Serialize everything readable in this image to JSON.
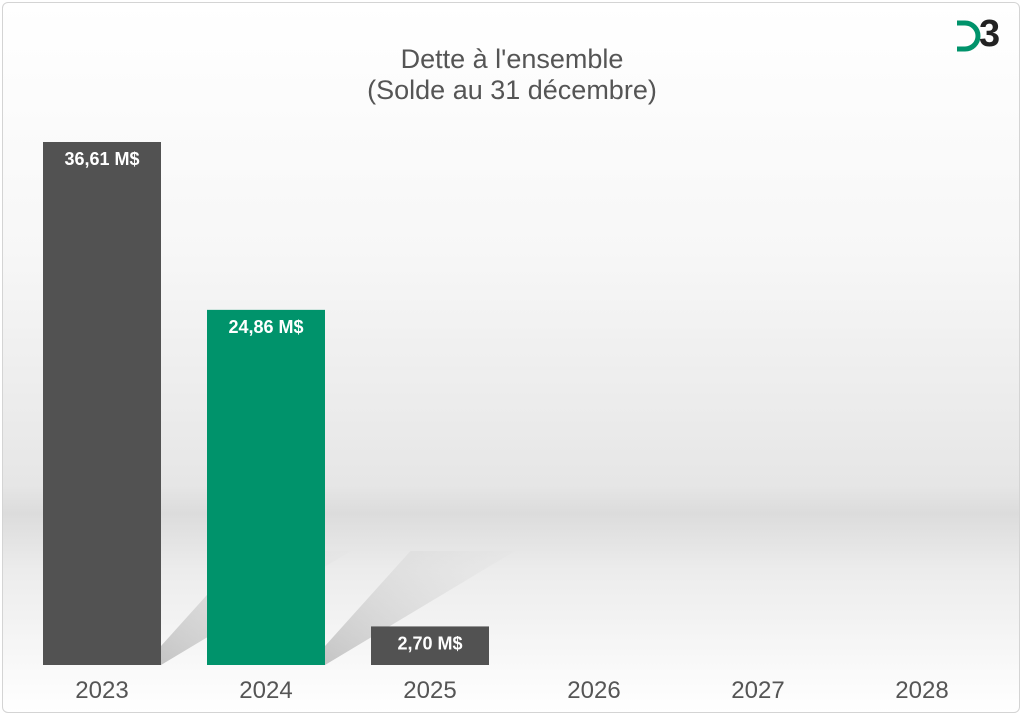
{
  "chart_data": {
    "type": "bar",
    "title": "Dette à l'ensemble",
    "subtitle": "(Solde au 31 décembre)",
    "categories": [
      "2023",
      "2024",
      "2025",
      "2026",
      "2027",
      "2028"
    ],
    "values": [
      36.61,
      24.86,
      2.7,
      null,
      null,
      null
    ],
    "value_labels": [
      "36,61 M$",
      "24,86 M$",
      "2,70 M$",
      "",
      "",
      ""
    ],
    "bar_colors": [
      "#525252",
      "#00936b",
      "#525252",
      "#525252",
      "#525252",
      "#525252"
    ],
    "ylim": [
      0,
      36.61
    ],
    "grid": false,
    "legend": "none",
    "xlabel": "",
    "ylabel": ""
  },
  "logo": {
    "text": "D3",
    "accent_color": "#00936b"
  }
}
